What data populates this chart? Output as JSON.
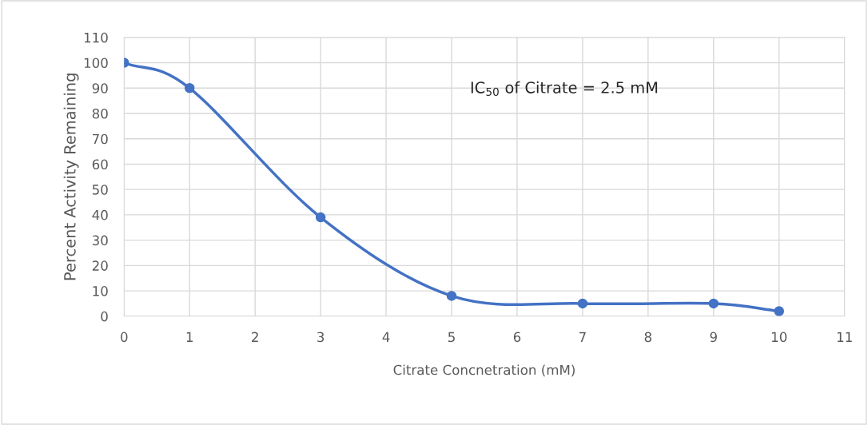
{
  "chart_data": {
    "type": "line",
    "xlabel": "Citrate Concnetration (mM)",
    "ylabel": "Percent Activity Remaining",
    "x": [
      0,
      1,
      3,
      5,
      7,
      9,
      10
    ],
    "series": [
      {
        "color": "#4472c4",
        "values": [
          100,
          90,
          39,
          8,
          5,
          5,
          2
        ]
      }
    ],
    "xlim": [
      0,
      11
    ],
    "xticks": [
      0,
      1,
      2,
      3,
      4,
      5,
      6,
      7,
      8,
      9,
      10,
      11
    ],
    "ylim": [
      0,
      110
    ],
    "yticks": [
      0,
      10,
      20,
      30,
      40,
      50,
      60,
      70,
      80,
      90,
      100,
      110
    ],
    "grid": true,
    "marker": "circle",
    "line_style": "solid",
    "annotations": [
      "IC$_{50}$ of Citrate = 2.5 mM"
    ]
  }
}
